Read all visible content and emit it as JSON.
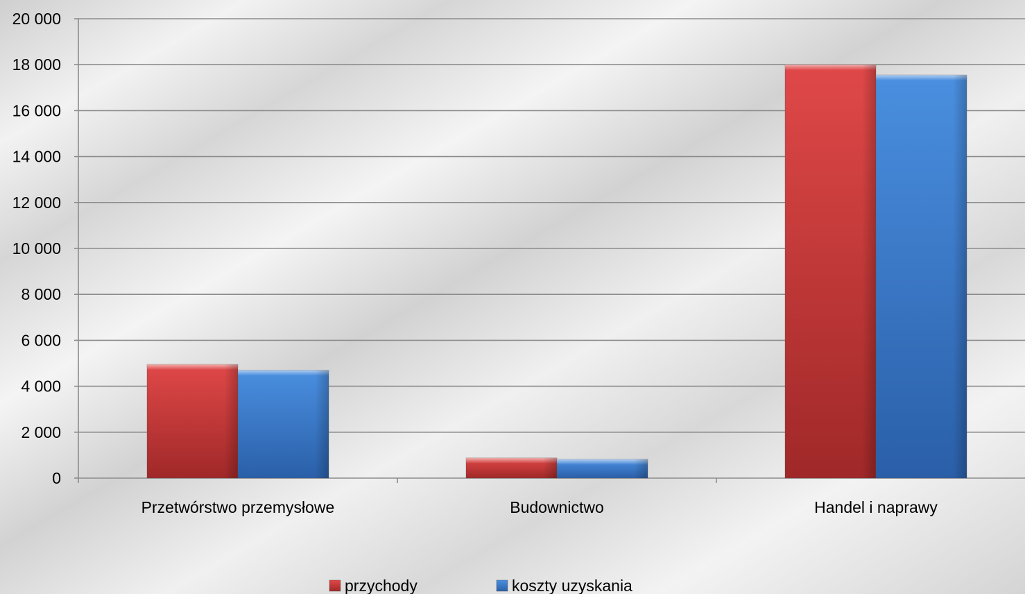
{
  "chart_data": {
    "type": "bar",
    "title": "",
    "xlabel": "",
    "ylabel": "",
    "categories": [
      "Przetwórstwo przemysłowe",
      "Budownictwo",
      "Handel i naprawy"
    ],
    "series": [
      {
        "name": "przychody",
        "values": [
          4950,
          880,
          18000
        ],
        "color": "#d83a3a"
      },
      {
        "name": "koszty uzyskania",
        "values": [
          4700,
          820,
          17550
        ],
        "color": "#3a7fd0"
      }
    ],
    "ylim": [
      0,
      20000
    ],
    "yticks": [
      0,
      2000,
      4000,
      6000,
      8000,
      10000,
      12000,
      14000,
      16000,
      18000,
      20000
    ],
    "ytick_labels": [
      "0",
      "2 000",
      "4 000",
      "6 000",
      "8 000",
      "10 000",
      "12 000",
      "14 000",
      "16 000",
      "18 000",
      "20 000"
    ],
    "grid": true,
    "legend_position": "bottom",
    "background": "silver-gradient",
    "gridline_color": "#8c8c8c",
    "axis_color": "#8c8c8c"
  }
}
